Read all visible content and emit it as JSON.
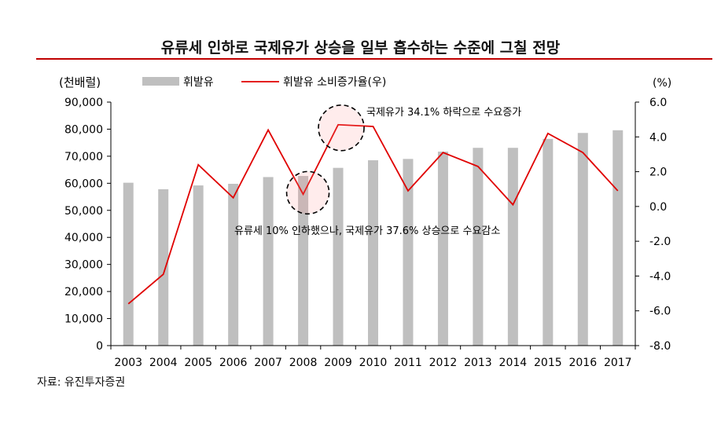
{
  "title": "유류세 인하로 국제유가 상승을 일부 흡수하는 수준에 그칠 전망",
  "source": "자료: 유진투자증권",
  "colors": {
    "bar": "#bfbfbf",
    "line": "#e00000",
    "title_rule": "#c00000"
  },
  "chart_data": {
    "type": "bar+line",
    "categories": [
      "2003",
      "2004",
      "2005",
      "2006",
      "2007",
      "2008",
      "2009",
      "2010",
      "2011",
      "2012",
      "2013",
      "2014",
      "2015",
      "2016",
      "2017"
    ],
    "series": [
      {
        "name": "휘발유",
        "type": "bar",
        "axis": "left",
        "values": [
          60200,
          57800,
          59200,
          59800,
          62300,
          62700,
          65700,
          68500,
          69000,
          71700,
          73100,
          73100,
          76400,
          78600,
          79600
        ]
      },
      {
        "name": "휘발유 소비증가율(우)",
        "type": "line",
        "axis": "right",
        "values": [
          -5.6,
          -3.9,
          2.4,
          0.5,
          4.4,
          0.7,
          4.7,
          4.6,
          0.9,
          3.1,
          2.3,
          0.1,
          4.2,
          3.1,
          0.9
        ]
      }
    ],
    "left_axis": {
      "label": "(천배럴)",
      "min": 0,
      "max": 90000,
      "ticks": [
        "0",
        "10,000",
        "20,000",
        "30,000",
        "40,000",
        "50,000",
        "60,000",
        "70,000",
        "80,000",
        "90,000"
      ]
    },
    "right_axis": {
      "label": "(%)",
      "min": -8.0,
      "max": 6.0,
      "ticks": [
        "-8.0",
        "-6.0",
        "-4.0",
        "-2.0",
        "0.0",
        "2.0",
        "4.0",
        "6.0"
      ]
    },
    "annotations": [
      {
        "text": "국제유가 34.1%  하락으로 수요증가",
        "year": "2009"
      },
      {
        "text": "유류세 10% 인하했으나,  국제유가 37.6%  상승으로 수요감소",
        "year": "2008"
      }
    ],
    "grid": false,
    "legend": "top-left"
  }
}
